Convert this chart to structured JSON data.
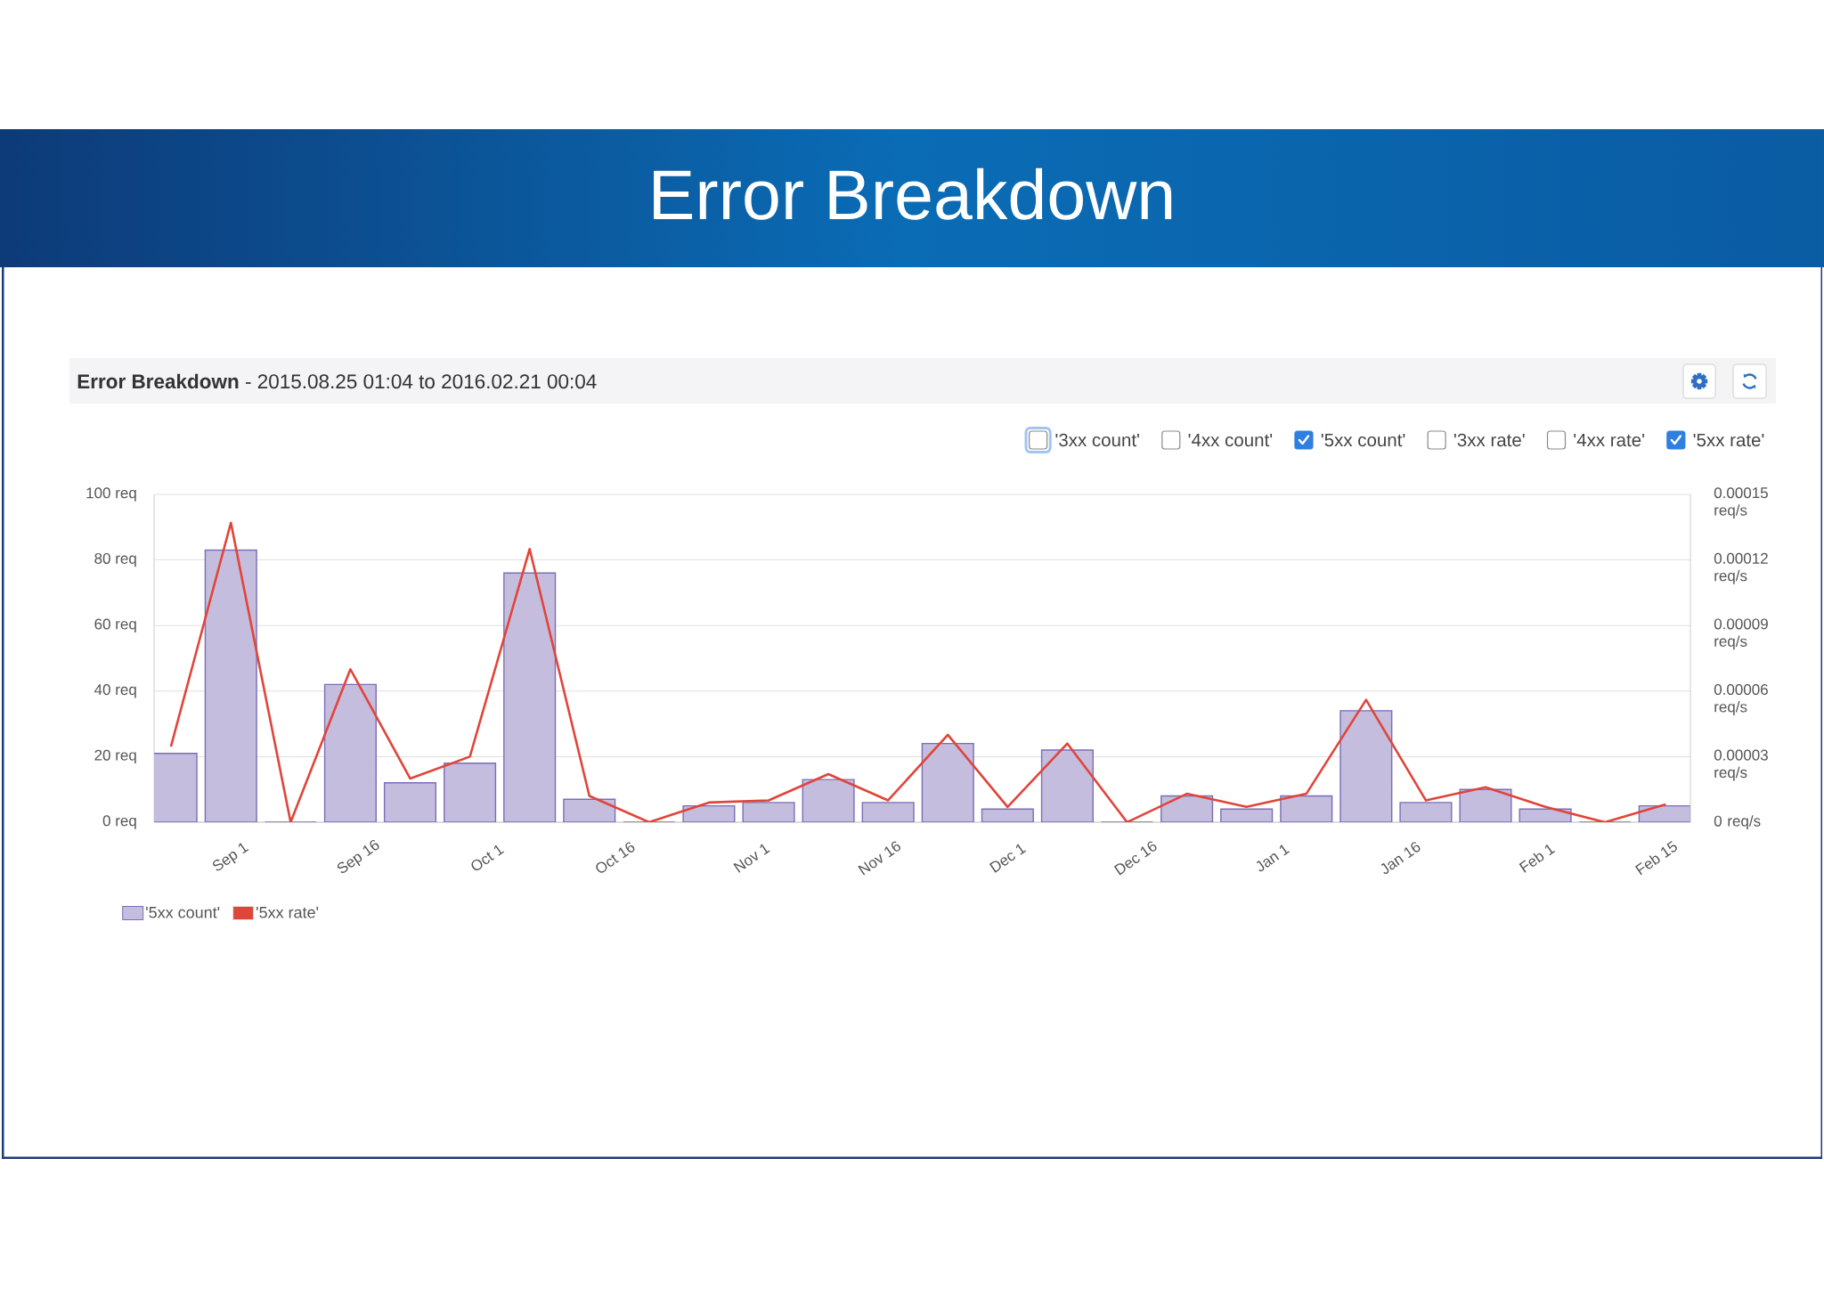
{
  "chart_data": {
    "type": "bar",
    "title": "Error Breakdown",
    "subtitle": "**Error Breakdown** - 2015.08.25 01:04 to 2016.02.21 00:04",
    "annotations": [
      "'3xx count'",
      "'4xx count'",
      "'5xx count'",
      "'3xx rate'",
      "'4xx rate'",
      "'5xx rate'"
    ],
    "x": [
      "2015-08-25",
      "2015-09-01",
      "2015-09-08",
      "2015-09-15",
      "2015-09-22",
      "2015-09-29",
      "2015-10-06",
      "2015-10-13",
      "2015-10-20",
      "2015-10-27",
      "2015-11-03",
      "2015-11-10",
      "2015-11-17",
      "2015-11-24",
      "2015-12-01",
      "2015-12-08",
      "2015-12-15",
      "2015-12-22",
      "2015-12-29",
      "2016-01-05",
      "2016-01-12",
      "2016-01-19",
      "2016-01-26",
      "2016-02-02",
      "2016-02-09",
      "2016-02-16"
    ],
    "series": [
      {
        "name": "'5xx count'",
        "color": "#c5bddd",
        "values": [
          21,
          83,
          0,
          42,
          12,
          18,
          76,
          7,
          0,
          5,
          6,
          13,
          6,
          24,
          4,
          22,
          0,
          8,
          4,
          8,
          34,
          6,
          10,
          4,
          0,
          5
        ]
      },
      {
        "name": "'5xx rate'",
        "type": "line",
        "axis": "y2",
        "color": "#e0453a",
        "values": [
          3.5e-05,
          0.000137,
          0,
          7e-05,
          2e-05,
          3e-05,
          0.000125,
          1.2e-05,
          0,
          9e-06,
          1e-05,
          2.2e-05,
          1e-05,
          4e-05,
          7e-06,
          3.6e-05,
          0,
          1.3e-05,
          7e-06,
          1.3e-05,
          5.6e-05,
          1e-05,
          1.6e-05,
          7e-06,
          0,
          8e-06
        ]
      }
    ],
    "xlim": [
      "2015-08-23",
      "2016-02-19"
    ],
    "xticks": [
      {
        "value": "2015-09-01",
        "label": "Sep 1"
      },
      {
        "value": "2015-09-16",
        "label": "Sep 16"
      },
      {
        "value": "2015-10-01",
        "label": "Oct 1"
      },
      {
        "value": "2015-10-16",
        "label": "Oct 16"
      },
      {
        "value": "2015-11-01",
        "label": "Nov 1"
      },
      {
        "value": "2015-11-16",
        "label": "Nov 16"
      },
      {
        "value": "2015-12-01",
        "label": "Dec 1"
      },
      {
        "value": "2015-12-16",
        "label": "Dec 16"
      },
      {
        "value": "2016-01-01",
        "label": "Jan 1"
      },
      {
        "value": "2016-01-16",
        "label": "Jan 16"
      },
      {
        "value": "2016-02-01",
        "label": "Feb 1"
      },
      {
        "value": "2016-02-15",
        "label": "Feb 15"
      }
    ],
    "ylim": [
      0,
      100
    ],
    "yticks": [
      {
        "value": 0,
        "label": "0 req"
      },
      {
        "value": 20,
        "label": "20 req"
      },
      {
        "value": 40,
        "label": "40 req"
      },
      {
        "value": 60,
        "label": "60 req"
      },
      {
        "value": 80,
        "label": "80 req"
      },
      {
        "value": 100,
        "label": "100 req"
      }
    ],
    "y2lim": [
      0,
      0.00015
    ],
    "y2ticks": [
      {
        "value": 0,
        "label": "0 req/s"
      },
      {
        "value": 3e-05,
        "label": "0.00003 req/s"
      },
      {
        "value": 6e-05,
        "label": "0.00006 req/s"
      },
      {
        "value": 9e-05,
        "label": "0.00009 req/s"
      },
      {
        "value": 0.00012,
        "label": "0.00012 req/s"
      },
      {
        "value": 0.00015,
        "label": "0.00015 req/s"
      }
    ],
    "grid": "y",
    "legend": "bottom left"
  }
}
